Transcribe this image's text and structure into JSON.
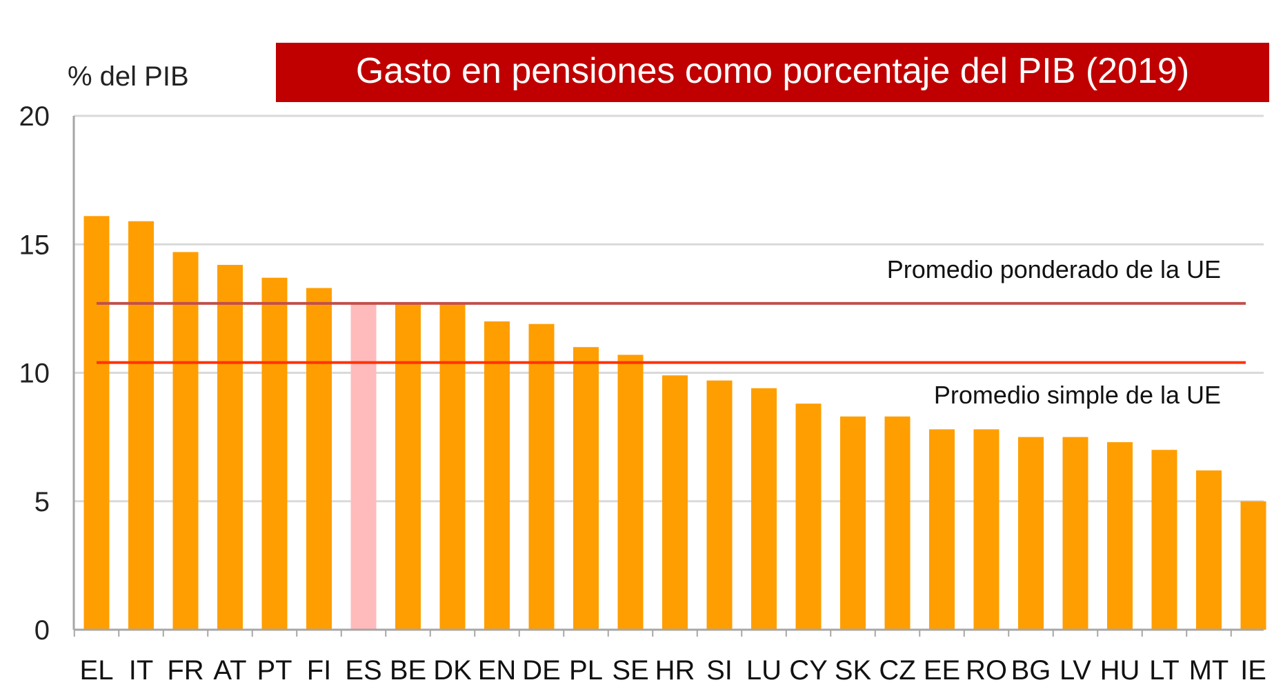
{
  "chart_data": {
    "type": "bar",
    "title": "Gasto en pensiones como porcentaje del PIB (2019)",
    "ylabel": "% del PIB",
    "xlabel": "",
    "ylim": [
      0,
      20
    ],
    "yticks": [
      0,
      5,
      10,
      15,
      20
    ],
    "grid": true,
    "categories": [
      "EL",
      "IT",
      "FR",
      "AT",
      "PT",
      "FI",
      "ES",
      "BE",
      "DK",
      "EN",
      "DE",
      "PL",
      "SE",
      "HR",
      "SI",
      "LU",
      "CY",
      "SK",
      "CZ",
      "EE",
      "RO",
      "BG",
      "LV",
      "HU",
      "LT",
      "MT",
      "IE"
    ],
    "values": [
      16.1,
      15.9,
      14.7,
      14.2,
      13.7,
      13.3,
      12.7,
      12.7,
      12.7,
      12.0,
      11.9,
      11.0,
      10.7,
      9.9,
      9.7,
      9.4,
      8.8,
      8.3,
      8.3,
      7.8,
      7.8,
      7.5,
      7.5,
      7.3,
      7.0,
      6.2,
      5.0
    ],
    "highlight_category": "ES",
    "colors": {
      "bar": "#FF9E00",
      "highlight_bar": "#FFBBBB",
      "title_bg": "#C00000",
      "title_text": "#FFFFFF",
      "weighted_line": "#C0504D",
      "simple_line": "#FF3300",
      "grid": "#D9D9D9",
      "axis": "#A6A6A6"
    },
    "reference_lines": [
      {
        "name": "Promedio ponderado de la UE",
        "value": 12.7,
        "color_key": "weighted_line"
      },
      {
        "name": "Promedio simple de la UE",
        "value": 10.4,
        "color_key": "simple_line"
      }
    ]
  }
}
